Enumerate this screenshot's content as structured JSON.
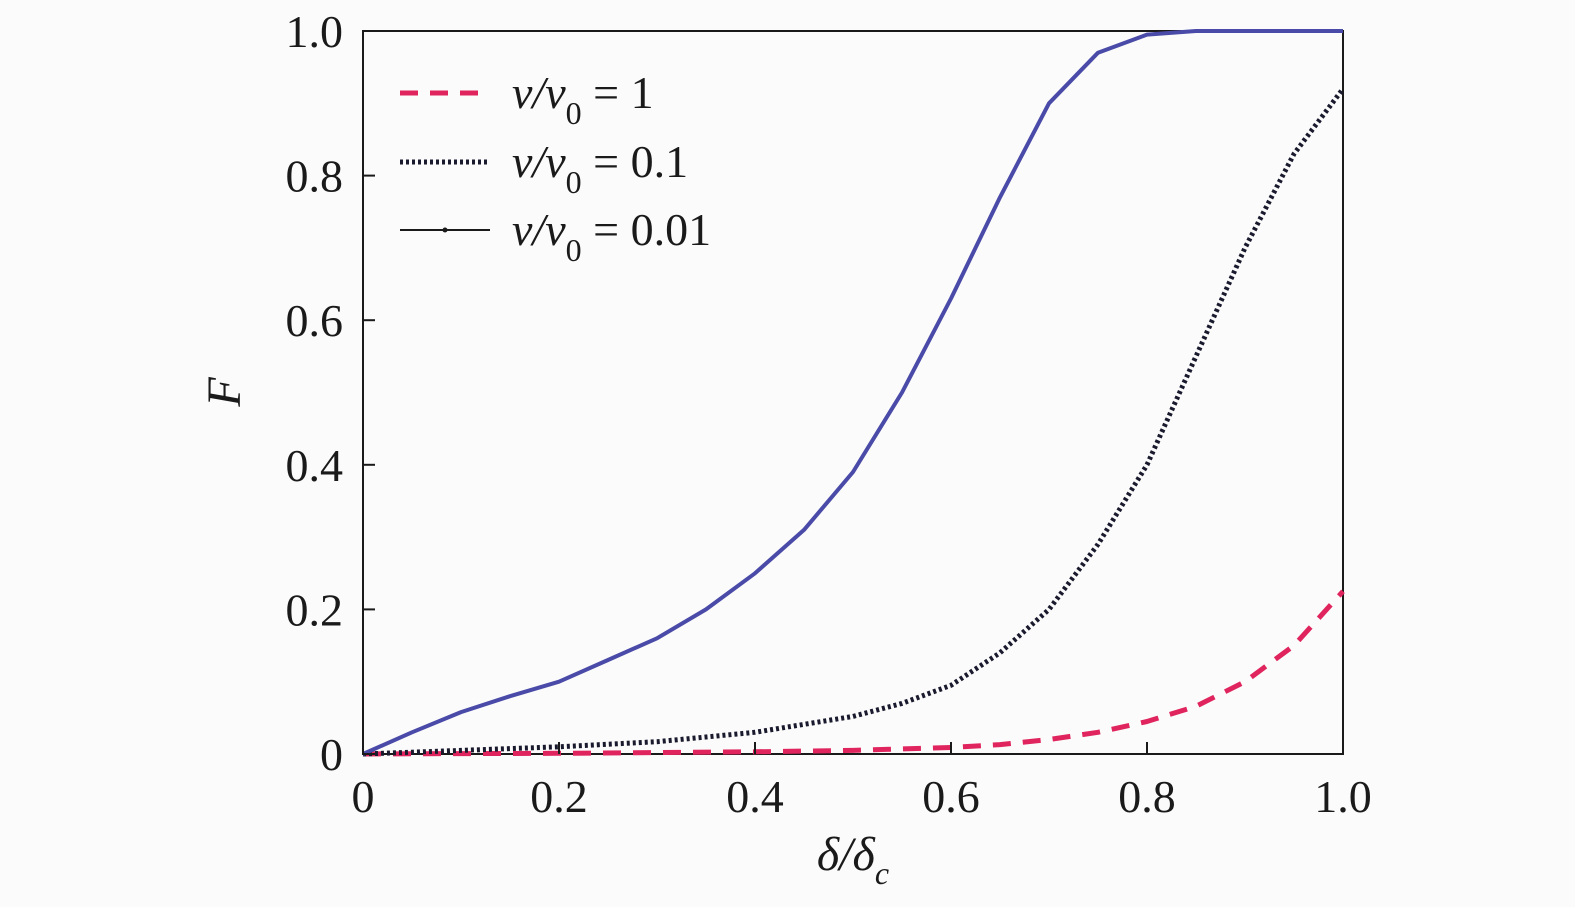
{
  "chart_data": {
    "type": "line",
    "xlabel": "δ/δc",
    "ylabel": "F",
    "xlim": [
      0,
      1.0
    ],
    "ylim": [
      0,
      1.0
    ],
    "x_ticks": [
      "0",
      "0.2",
      "0.4",
      "0.6",
      "0.8",
      "1.0"
    ],
    "y_ticks": [
      "0",
      "0.2",
      "0.4",
      "0.6",
      "0.8",
      "1.0"
    ],
    "legend_position": "top-left",
    "series": [
      {
        "name": "v/v0 = 1",
        "style": "dashed",
        "color": "#e0245e",
        "x": [
          0,
          0.1,
          0.2,
          0.3,
          0.4,
          0.5,
          0.6,
          0.65,
          0.7,
          0.75,
          0.8,
          0.85,
          0.9,
          0.95,
          1.0
        ],
        "y": [
          0,
          0.0005,
          0.001,
          0.002,
          0.003,
          0.005,
          0.009,
          0.013,
          0.02,
          0.03,
          0.045,
          0.066,
          0.1,
          0.15,
          0.225
        ]
      },
      {
        "name": "v/v0 = 0.1",
        "style": "dotted",
        "color": "#1a1a2e",
        "x": [
          0,
          0.1,
          0.2,
          0.3,
          0.4,
          0.5,
          0.55,
          0.6,
          0.65,
          0.7,
          0.75,
          0.8,
          0.85,
          0.9,
          0.95,
          1.0
        ],
        "y": [
          0,
          0.005,
          0.01,
          0.017,
          0.03,
          0.052,
          0.07,
          0.095,
          0.14,
          0.2,
          0.29,
          0.4,
          0.55,
          0.7,
          0.83,
          0.92
        ]
      },
      {
        "name": "v/v0 = 0.01",
        "style": "solid",
        "color": "#4a4aa8",
        "x": [
          0,
          0.05,
          0.1,
          0.15,
          0.2,
          0.25,
          0.3,
          0.35,
          0.4,
          0.45,
          0.5,
          0.55,
          0.6,
          0.65,
          0.7,
          0.75,
          0.8,
          0.85,
          0.9,
          0.95,
          1.0
        ],
        "y": [
          0,
          0.03,
          0.058,
          0.08,
          0.1,
          0.13,
          0.16,
          0.2,
          0.25,
          0.31,
          0.39,
          0.5,
          0.63,
          0.77,
          0.9,
          0.97,
          0.995,
          1.0,
          1.0,
          1.0,
          1.0
        ]
      }
    ],
    "legend": [
      {
        "pre": "v/v",
        "sub": "0",
        "post": " = 1"
      },
      {
        "pre": "v/v",
        "sub": "0",
        "post": " = 0.1"
      },
      {
        "pre": "v/v",
        "sub": "0",
        "post": " = 0.01"
      }
    ]
  }
}
